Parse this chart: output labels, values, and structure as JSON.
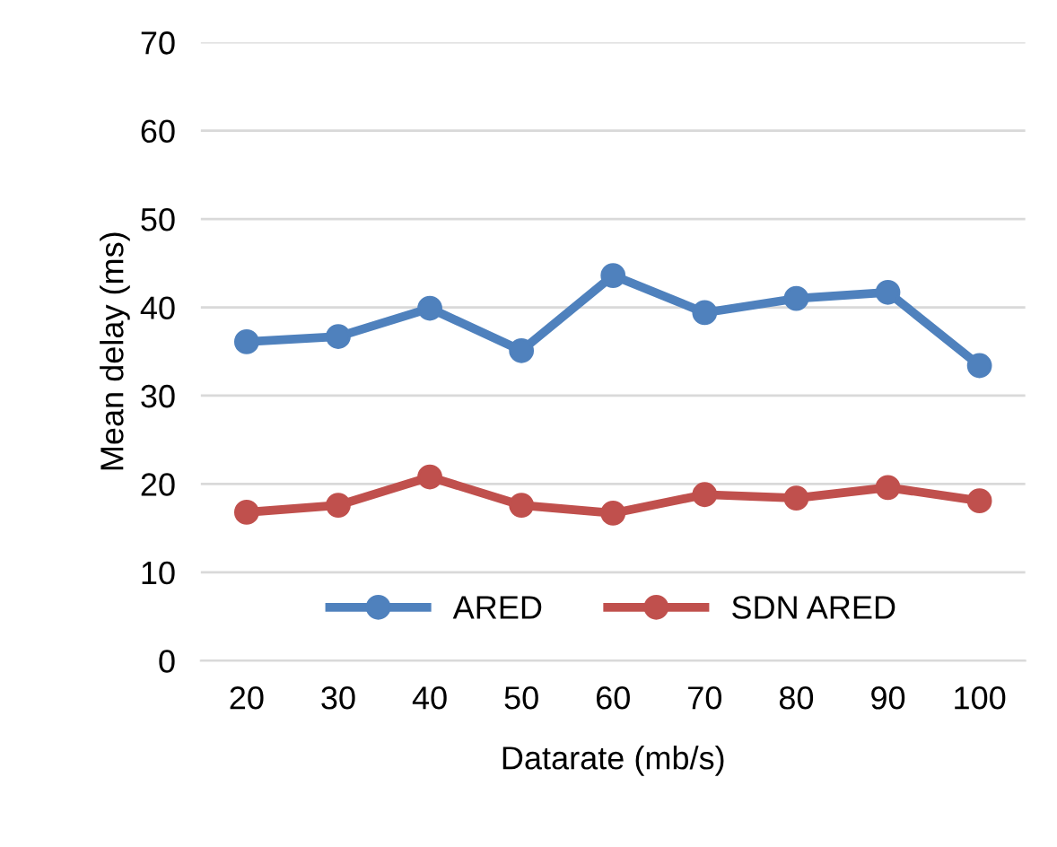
{
  "chart_data": {
    "type": "line",
    "xlabel": "Datarate (mb/s)",
    "ylabel": "Mean delay (ms)",
    "categories": [
      "20",
      "30",
      "40",
      "50",
      "60",
      "70",
      "80",
      "90",
      "100"
    ],
    "series": [
      {
        "name": "ARED",
        "color": "#4f81bd",
        "values": [
          36.1,
          36.7,
          39.9,
          35.1,
          43.6,
          39.4,
          41.0,
          41.7,
          33.4
        ]
      },
      {
        "name": "SDN ARED",
        "color": "#c0504d",
        "values": [
          16.8,
          17.6,
          20.8,
          17.6,
          16.7,
          18.8,
          18.4,
          19.6,
          18.1
        ]
      }
    ],
    "ylim": [
      0,
      70
    ],
    "yticks": [
      0,
      10,
      20,
      30,
      40,
      50,
      60,
      70
    ],
    "grid": "y",
    "legend": "bottom",
    "marker": "circle",
    "line_style": "solid"
  }
}
